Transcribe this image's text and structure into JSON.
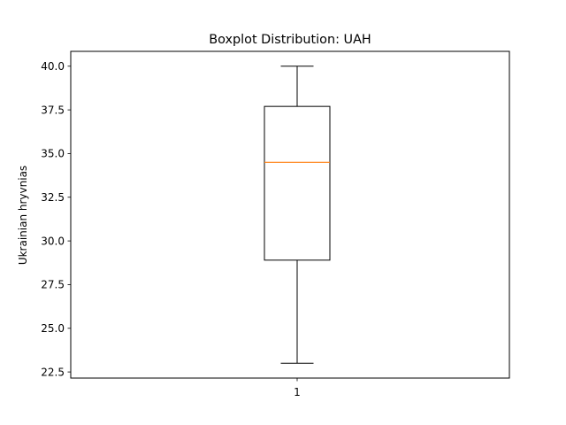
{
  "chart_data": {
    "type": "boxplot",
    "title": "Boxplot Distribution: UAH",
    "ylabel": "Ukrainian hryvnias",
    "xlabel": "",
    "categories": [
      "1"
    ],
    "series": [
      {
        "min": 23.0,
        "q1": 28.9,
        "median": 34.5,
        "q3": 37.7,
        "max": 40.0
      }
    ],
    "yticks": [
      22.5,
      25.0,
      27.5,
      30.0,
      32.5,
      35.0,
      37.5,
      40.0
    ],
    "ytick_labels": [
      "22.5",
      "25.0",
      "27.5",
      "30.0",
      "32.5",
      "35.0",
      "37.5",
      "40.0"
    ],
    "ylim": [
      22.15,
      40.85
    ],
    "grid": false,
    "colors": {
      "box": "#000000",
      "median": "#ff7f0e",
      "whisker": "#000000",
      "frame": "#000000"
    }
  }
}
